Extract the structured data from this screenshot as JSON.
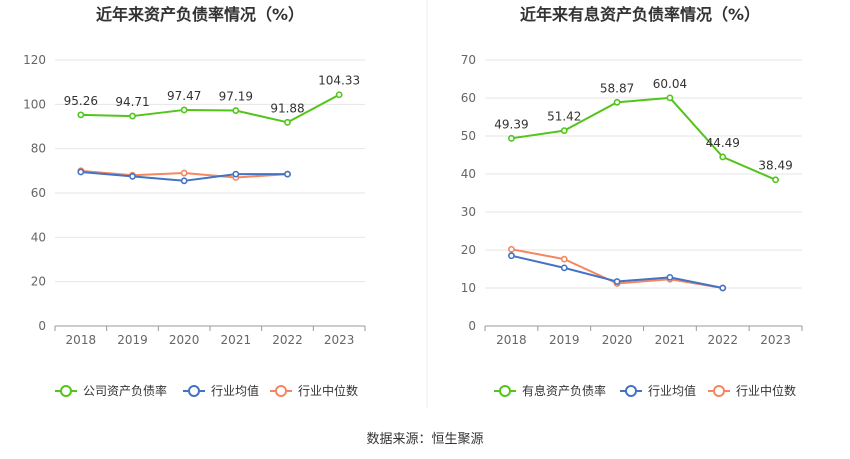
{
  "source": "数据来源：恒生聚源",
  "chart_data": [
    {
      "type": "line",
      "title": "近年来资产负债率情况（%）",
      "categories": [
        "2018",
        "2019",
        "2020",
        "2021",
        "2022",
        "2023"
      ],
      "ylim": [
        0,
        120
      ],
      "yticks": [
        0,
        20,
        40,
        60,
        80,
        100,
        120
      ],
      "grid": true,
      "legend_position": "bottom",
      "series": [
        {
          "name": "公司资产负债率",
          "color": "#52c41a",
          "show_labels": true,
          "values": [
            95.26,
            94.71,
            97.47,
            97.19,
            91.88,
            104.33
          ],
          "labels": [
            "95.26",
            "94.71",
            "97.47",
            "97.19",
            "91.88",
            "104.33"
          ]
        },
        {
          "name": "行业均值",
          "color": "#4472c4",
          "show_labels": false,
          "values": [
            69.5,
            67.5,
            65.5,
            68.5,
            68.5,
            null
          ]
        },
        {
          "name": "行业中位数",
          "color": "#f4875f",
          "show_labels": false,
          "values": [
            70.0,
            68.0,
            69.0,
            67.0,
            68.5,
            null
          ]
        }
      ]
    },
    {
      "type": "line",
      "title": "近年来有息资产负债率情况（%）",
      "categories": [
        "2018",
        "2019",
        "2020",
        "2021",
        "2022",
        "2023"
      ],
      "ylim": [
        0,
        70
      ],
      "yticks": [
        0,
        10,
        20,
        30,
        40,
        50,
        60,
        70
      ],
      "grid": true,
      "legend_position": "bottom",
      "series": [
        {
          "name": "有息资产负债率",
          "color": "#52c41a",
          "show_labels": true,
          "values": [
            49.39,
            51.42,
            58.87,
            60.04,
            44.49,
            38.49
          ],
          "labels": [
            "49.39",
            "51.42",
            "58.87",
            "60.04",
            "44.49",
            "38.49"
          ]
        },
        {
          "name": "行业均值",
          "color": "#4472c4",
          "show_labels": false,
          "values": [
            18.5,
            15.3,
            11.7,
            12.8,
            10.0,
            null
          ]
        },
        {
          "name": "行业中位数",
          "color": "#f4875f",
          "show_labels": false,
          "values": [
            20.2,
            17.6,
            11.2,
            12.3,
            10.0,
            null
          ]
        }
      ]
    }
  ]
}
